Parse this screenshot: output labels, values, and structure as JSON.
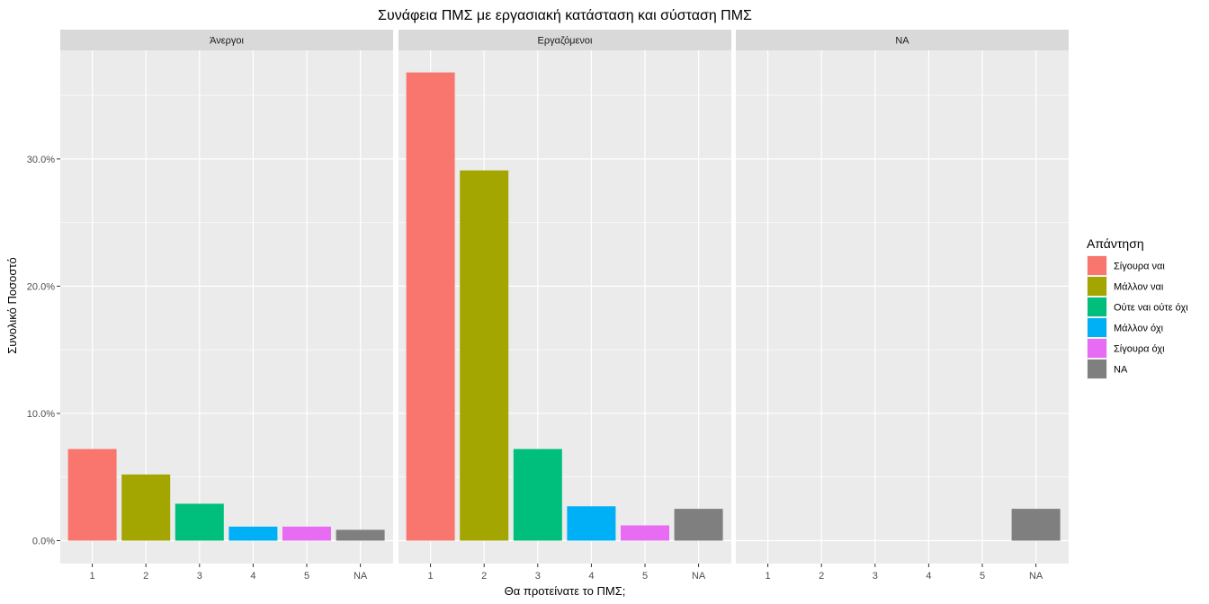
{
  "chart_data": {
    "type": "bar",
    "title": "Συνάφεια ΠΜΣ με εργασιακή κατάσταση και σύσταση ΠΜΣ",
    "xlabel": "Θα προτείνατε το ΠΜΣ;",
    "ylabel": "Συνολικό Ποσοστό",
    "categories": [
      "1",
      "2",
      "3",
      "4",
      "5",
      "NA"
    ],
    "ylim": [
      0,
      38.9
    ],
    "y_ticks": [
      0,
      10,
      20,
      30
    ],
    "y_tick_labels": [
      "0.0%",
      "10.0%",
      "20.0%",
      "30.0%"
    ],
    "facets": [
      {
        "label": "Άνεργοι",
        "values": [
          7.2,
          5.2,
          2.9,
          1.1,
          1.1,
          0.85
        ]
      },
      {
        "label": "Εργαζόμενοι",
        "values": [
          36.8,
          29.1,
          7.2,
          2.7,
          1.2,
          2.5
        ]
      },
      {
        "label": "NA",
        "values": [
          null,
          null,
          null,
          null,
          null,
          2.5
        ]
      }
    ],
    "legend": {
      "title": "Απάντηση",
      "position": "right",
      "items": [
        {
          "label": "Σίγουρα ναι",
          "color": "#F8766D"
        },
        {
          "label": "Μάλλον ναι",
          "color": "#A3A500"
        },
        {
          "label": "Ούτε ναι ούτε όχι",
          "color": "#00BF7D"
        },
        {
          "label": "Μάλλον όχι",
          "color": "#00B0F6"
        },
        {
          "label": "Σίγουρα όχι",
          "color": "#E76BF3"
        },
        {
          "label": "NA",
          "color": "#7F7F7F"
        }
      ]
    },
    "grid": true,
    "colors": {
      "panel_bg": "#EBEBEB",
      "strip_bg": "#D9D9D9",
      "grid": "#FFFFFF"
    }
  }
}
